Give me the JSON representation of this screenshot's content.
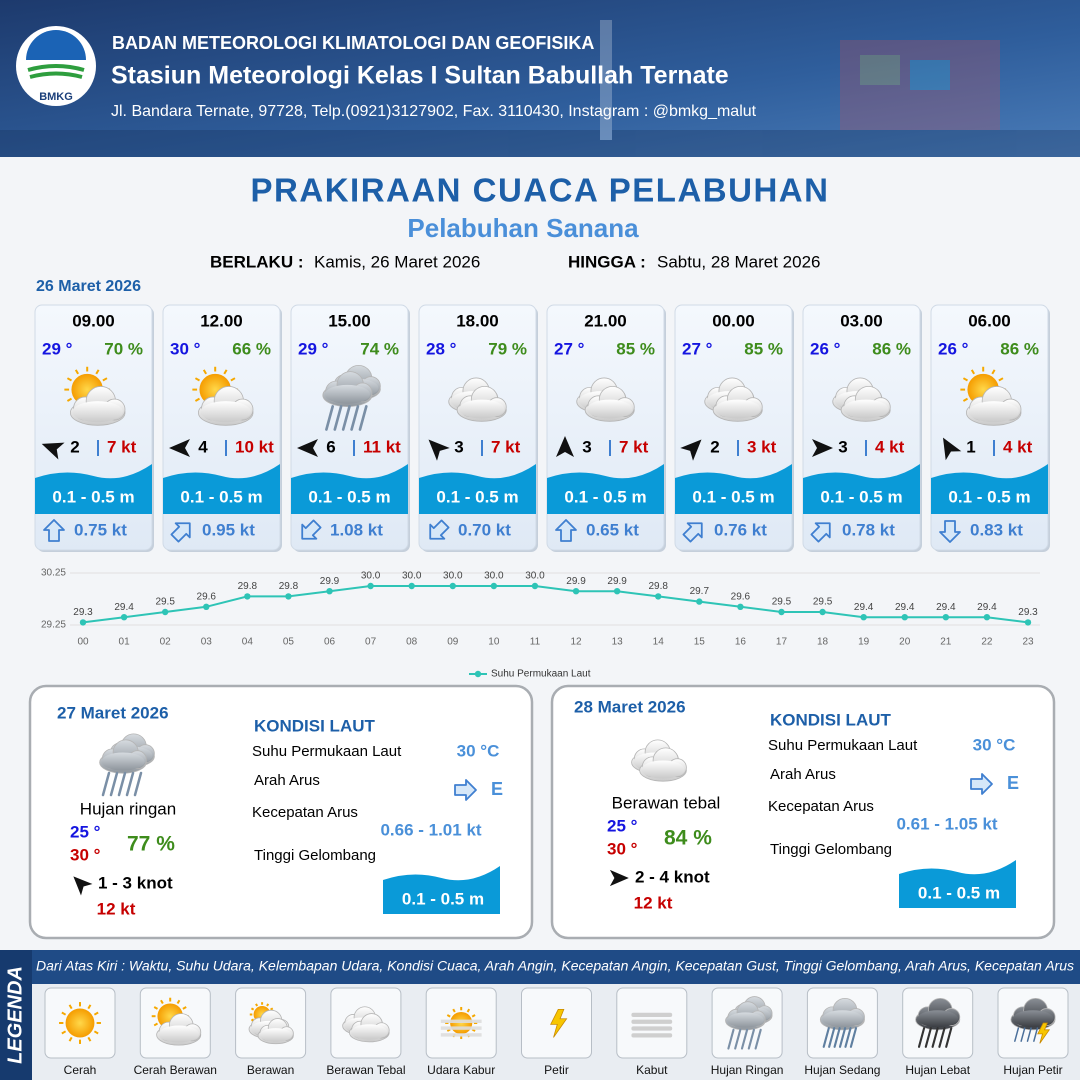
{
  "header": {
    "logo": "BMKG",
    "organization": "BADAN METEOROLOGI KLIMATOLOGI DAN GEOFISIKA",
    "station": "Stasiun Meteorologi Kelas I Sultan Babullah Ternate",
    "address": "Jl. Bandara Ternate, 97728, Telp.(0921)3127902, Fax. 3110430, Instagram : @bmkg_malut"
  },
  "title": "PRAKIRAAN CUACA PELABUHAN",
  "subtitle": "Pelabuhan Sanana",
  "validity": {
    "from_label": "BERLAKU :",
    "from": "Kamis, 26 Maret 2026",
    "to_label": "HINGGA :",
    "to": "Sabtu, 28 Maret 2026"
  },
  "day1_date": "26 Maret 2026",
  "forecasts": [
    {
      "time": "09.00",
      "air_temp": "29 °",
      "humidity": "70 %",
      "wind_speed": "2",
      "gust": "7 kt",
      "wave": "0.1 - 0.5 m",
      "current": "0.75 kt"
    },
    {
      "time": "12.00",
      "air_temp": "30 °",
      "humidity": "66 %",
      "wind_speed": "4",
      "gust": "10 kt",
      "wave": "0.1 - 0.5 m",
      "current": "0.95 kt"
    },
    {
      "time": "15.00",
      "air_temp": "29 °",
      "humidity": "74 %",
      "wind_speed": "6",
      "gust": "11 kt",
      "wave": "0.1 - 0.5 m",
      "current": "1.08 kt"
    },
    {
      "time": "18.00",
      "air_temp": "28 °",
      "humidity": "79 %",
      "wind_speed": "3",
      "gust": "7 kt",
      "wave": "0.1 - 0.5 m",
      "current": "0.70 kt"
    },
    {
      "time": "21.00",
      "air_temp": "27 °",
      "humidity": "85 %",
      "wind_speed": "3",
      "gust": "7 kt",
      "wave": "0.1 - 0.5 m",
      "current": "0.65 kt"
    },
    {
      "time": "00.00",
      "air_temp": "27 °",
      "humidity": "85 %",
      "wind_speed": "2",
      "gust": "3 kt",
      "wave": "0.1 - 0.5 m",
      "current": "0.76 kt"
    },
    {
      "time": "03.00",
      "air_temp": "26 °",
      "humidity": "86 %",
      "wind_speed": "3",
      "gust": "4 kt",
      "wave": "0.1 - 0.5 m",
      "current": "0.78 kt"
    },
    {
      "time": "06.00",
      "air_temp": "26 °",
      "humidity": "86 %",
      "wind_speed": "1",
      "gust": "4 kt",
      "wave": "0.1 - 0.5 m",
      "current": "0.83 kt"
    }
  ],
  "chart_data": {
    "type": "line",
    "categories": [
      "00",
      "01",
      "02",
      "03",
      "04",
      "05",
      "06",
      "07",
      "08",
      "09",
      "10",
      "11",
      "12",
      "13",
      "14",
      "15",
      "16",
      "17",
      "18",
      "19",
      "20",
      "21",
      "22",
      "23"
    ],
    "series": [
      {
        "name": "Suhu Permukaan Laut",
        "color": "#2ec4b6",
        "values": [
          29.3,
          29.4,
          29.5,
          29.6,
          29.8,
          29.8,
          29.9,
          30.0,
          30.0,
          30.0,
          30.0,
          30.0,
          29.9,
          29.9,
          29.8,
          29.7,
          29.6,
          29.5,
          29.5,
          29.4,
          29.4,
          29.4,
          29.4,
          29.3
        ],
        "value_labels": [
          "29.3",
          "29.4",
          "29.5",
          "29.6",
          "29.8",
          "29.8",
          "29.9",
          "30.0",
          "30.0",
          "30.0",
          "30.0",
          "30.0",
          "29.9",
          "29.9",
          "29.8",
          "29.7",
          "29.6",
          "29.5",
          "29.5",
          "29.4",
          "29.4",
          "29.4",
          "29.4",
          "29.3"
        ]
      }
    ],
    "ylim": [
      29.25,
      30.25
    ],
    "yticks": [
      29.25,
      30.25
    ],
    "legend": "bottom"
  },
  "days": [
    {
      "date": "27 Maret 2026",
      "condition": "Hujan ringan",
      "temp_min": "25 °",
      "temp_max": "30 °",
      "humidity": "77 %",
      "wind": "1 - 3 knot",
      "gust": "12 kt",
      "sea": {
        "heading": "KONDISI LAUT",
        "sst_label": "Suhu Permukaan Laut",
        "sst": "30 °C",
        "dir_label": "Arah Arus",
        "dir": "E",
        "speed_label": "Kecepatan Arus",
        "speed": "0.66 - 1.01 kt",
        "wave_label": "Tinggi Gelombang",
        "wave": "0.1 - 0.5 m"
      }
    },
    {
      "date": "28 Maret 2026",
      "condition": "Berawan tebal",
      "temp_min": "25 °",
      "temp_max": "30 °",
      "humidity": "84 %",
      "wind": "2 - 4 knot",
      "gust": "12 kt",
      "sea": {
        "heading": "KONDISI LAUT",
        "sst_label": "Suhu Permukaan Laut",
        "sst": "30 °C",
        "dir_label": "Arah Arus",
        "dir": "E",
        "speed_label": "Kecepatan Arus",
        "speed": "0.61 - 1.05 kt",
        "wave_label": "Tinggi Gelombang",
        "wave": "0.1 - 0.5 m"
      }
    }
  ],
  "legend": {
    "title": "LEGENDA",
    "description": "Dari Atas Kiri : Waktu, Suhu Udara, Kelembapan Udara, Kondisi Cuaca, Arah Angin, Kecepatan Angin, Kecepatan Gust, Tinggi Gelombang, Arah Arus, Kecepatan Arus",
    "items": [
      "Cerah",
      "Cerah Berawan",
      "Berawan",
      "Berawan Tebal",
      "Udara Kabur",
      "Petir",
      "Kabut",
      "Hujan Ringan",
      "Hujan Sedang",
      "Hujan Lebat",
      "Hujan Petir"
    ]
  }
}
